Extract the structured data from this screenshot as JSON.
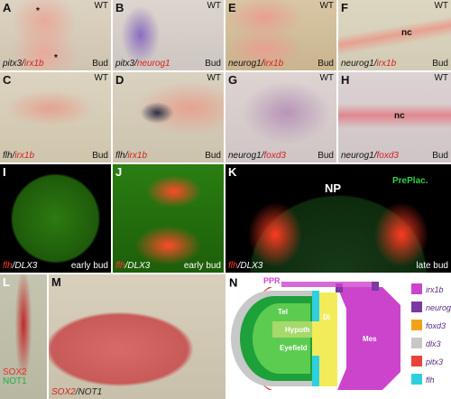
{
  "panels": [
    {
      "letter": "A",
      "genotype": "WT",
      "stage": "Bud",
      "markers": [
        {
          "text": "pitx3",
          "color": "#111111"
        },
        {
          "text": "/",
          "color": "#111111"
        },
        {
          "text": "irx1b",
          "color": "#d42020"
        }
      ],
      "labels": [
        "*",
        "*"
      ]
    },
    {
      "letter": "B",
      "genotype": "WT",
      "stage": "Bud",
      "markers": [
        {
          "text": "pitx3",
          "color": "#111111"
        },
        {
          "text": "/",
          "color": "#111111"
        },
        {
          "text": "neurog1",
          "color": "#d42020"
        }
      ],
      "labels": []
    },
    {
      "letter": "E",
      "genotype": "WT",
      "stage": "Bud",
      "markers": [
        {
          "text": "neurog1",
          "color": "#111111"
        },
        {
          "text": "/",
          "color": "#111111"
        },
        {
          "text": "irx1b",
          "color": "#d42020"
        }
      ],
      "labels": []
    },
    {
      "letter": "F",
      "genotype": "WT",
      "stage": "Bud",
      "markers": [
        {
          "text": "neurog1",
          "color": "#111111"
        },
        {
          "text": "/",
          "color": "#111111"
        },
        {
          "text": "irx1b",
          "color": "#d42020"
        }
      ],
      "labels": [
        "nc"
      ]
    },
    {
      "letter": "C",
      "genotype": "WT",
      "stage": "Bud",
      "markers": [
        {
          "text": "flh",
          "color": "#111111"
        },
        {
          "text": "/",
          "color": "#111111"
        },
        {
          "text": "irx1b",
          "color": "#d42020"
        }
      ],
      "labels": []
    },
    {
      "letter": "D",
      "genotype": "WT",
      "stage": "Bud",
      "markers": [
        {
          "text": "flh",
          "color": "#111111"
        },
        {
          "text": "/",
          "color": "#111111"
        },
        {
          "text": "irx1b",
          "color": "#d42020"
        }
      ],
      "labels": []
    },
    {
      "letter": "G",
      "genotype": "WT",
      "stage": "Bud",
      "markers": [
        {
          "text": "neurog1",
          "color": "#111111"
        },
        {
          "text": "/",
          "color": "#111111"
        },
        {
          "text": "foxd3",
          "color": "#d42020"
        }
      ],
      "labels": []
    },
    {
      "letter": "H",
      "genotype": "WT",
      "stage": "Bud",
      "markers": [
        {
          "text": "neurog1",
          "color": "#111111"
        },
        {
          "text": "/",
          "color": "#111111"
        },
        {
          "text": "foxd3",
          "color": "#d42020"
        }
      ],
      "labels": [
        "nc"
      ]
    },
    {
      "letter": "I",
      "stage": "early bud",
      "markers": [
        {
          "text": "flh",
          "color": "#ff3a2a"
        },
        {
          "text": "/",
          "color": "#ffffff"
        },
        {
          "text": "DLX3",
          "color": "#ffffff"
        }
      ],
      "labels": []
    },
    {
      "letter": "J",
      "stage": "early bud",
      "markers": [
        {
          "text": "flh",
          "color": "#ff3a2a"
        },
        {
          "text": "/",
          "color": "#ffffff"
        },
        {
          "text": "DLX3",
          "color": "#ffffff"
        }
      ],
      "labels": []
    },
    {
      "letter": "K",
      "stage": "late bud",
      "markers": [
        {
          "text": "flh",
          "color": "#ff3a2a"
        },
        {
          "text": "/",
          "color": "#ffffff"
        },
        {
          "text": "DLX3",
          "color": "#ffffff"
        }
      ],
      "labels": [
        "NP",
        "PrePlac."
      ]
    },
    {
      "letter": "L",
      "markers": [
        {
          "text": "SOX2",
          "color": "#e0332a"
        },
        {
          "text": "NOT1",
          "color": "#22b04a"
        }
      ],
      "labels": []
    },
    {
      "letter": "M",
      "markers": [
        {
          "text": "SOX2",
          "color": "#d42020"
        },
        {
          "text": "/",
          "color": "#222222"
        },
        {
          "text": "NOT1",
          "color": "#222222"
        }
      ],
      "labels": []
    }
  ],
  "diagram": {
    "letter": "N",
    "regions": [
      "PPR",
      "Tel",
      "Hypoth",
      "Eyefield",
      "Di",
      "Mes"
    ],
    "legend": [
      {
        "name": "irx1b",
        "color": "#cc44cc"
      },
      {
        "name": "neurog1",
        "color": "#7a3aa0"
      },
      {
        "name": "foxd3",
        "color": "#f2a21a"
      },
      {
        "name": "dlx3",
        "color": "#c8c8c8"
      },
      {
        "name": "pitx3",
        "color": "#e8433a"
      },
      {
        "name": "flh",
        "color": "#2ed0e0"
      }
    ]
  }
}
